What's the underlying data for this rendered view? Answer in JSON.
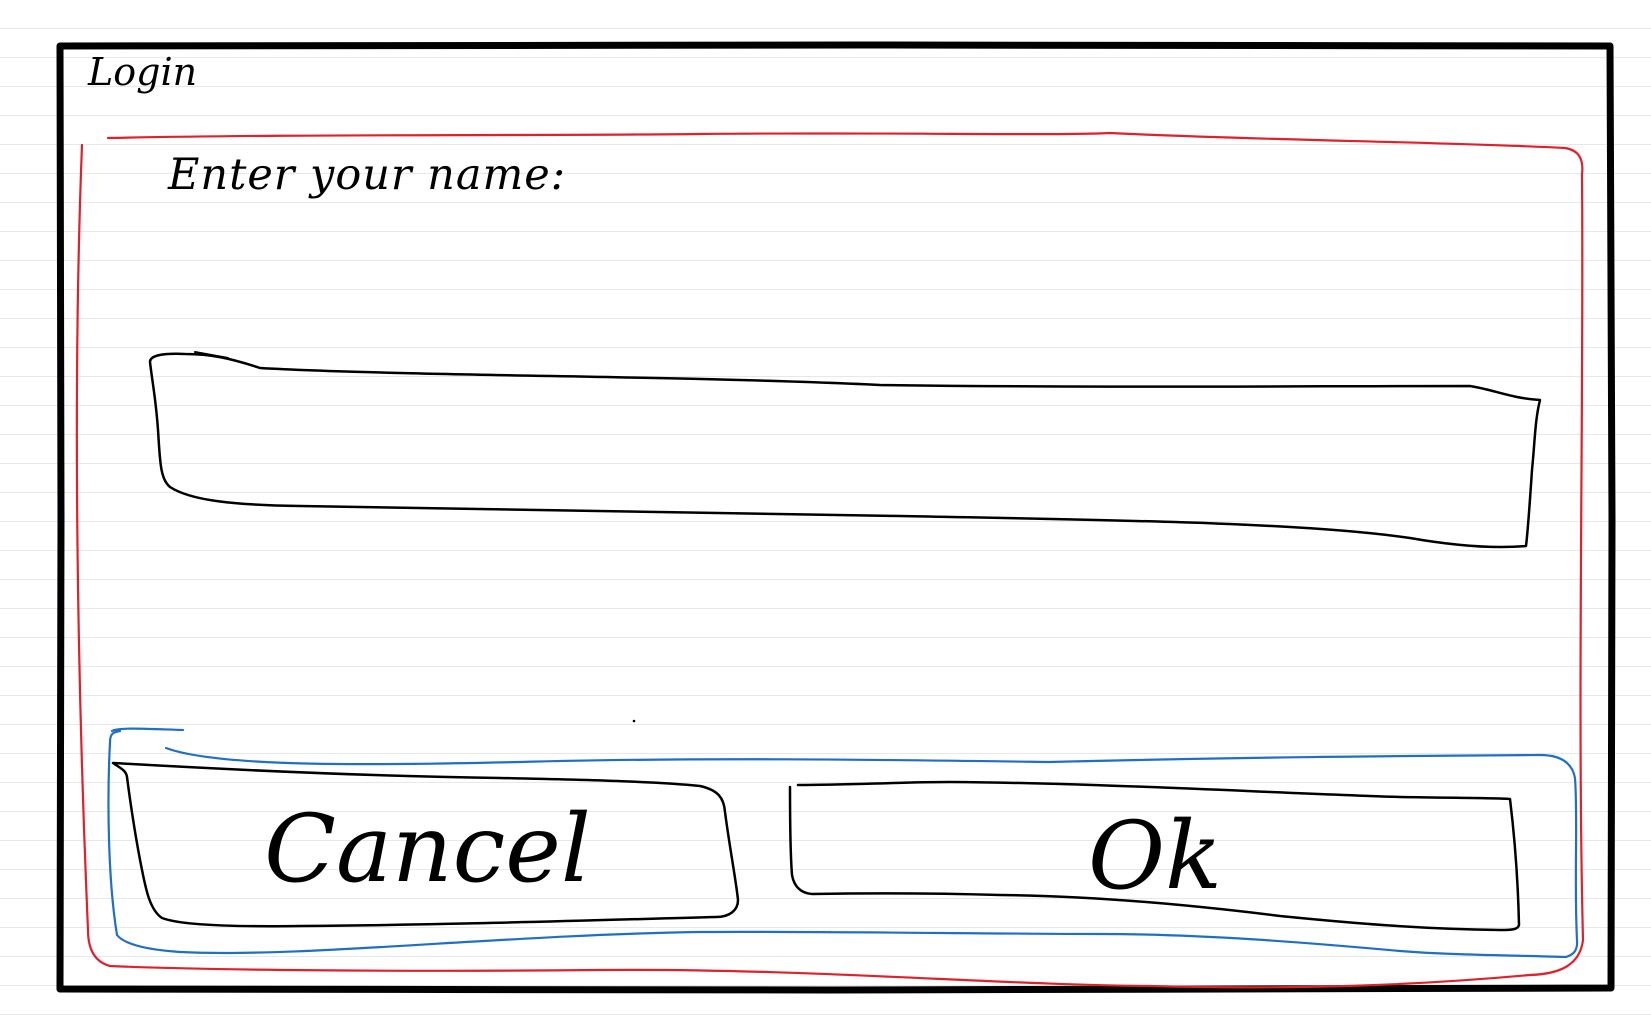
{
  "window": {
    "title": "Login"
  },
  "form": {
    "prompt_label": "Enter your name:",
    "name_input": {
      "value": "",
      "placeholder": ""
    }
  },
  "buttons": {
    "cancel_label": "Cancel",
    "ok_label": "Ok"
  },
  "colors": {
    "ink": "#000000",
    "form_group_outline": "#e0202a",
    "button_group_outline": "#1f6fc4",
    "paper_rule": "#e6e8eb"
  }
}
